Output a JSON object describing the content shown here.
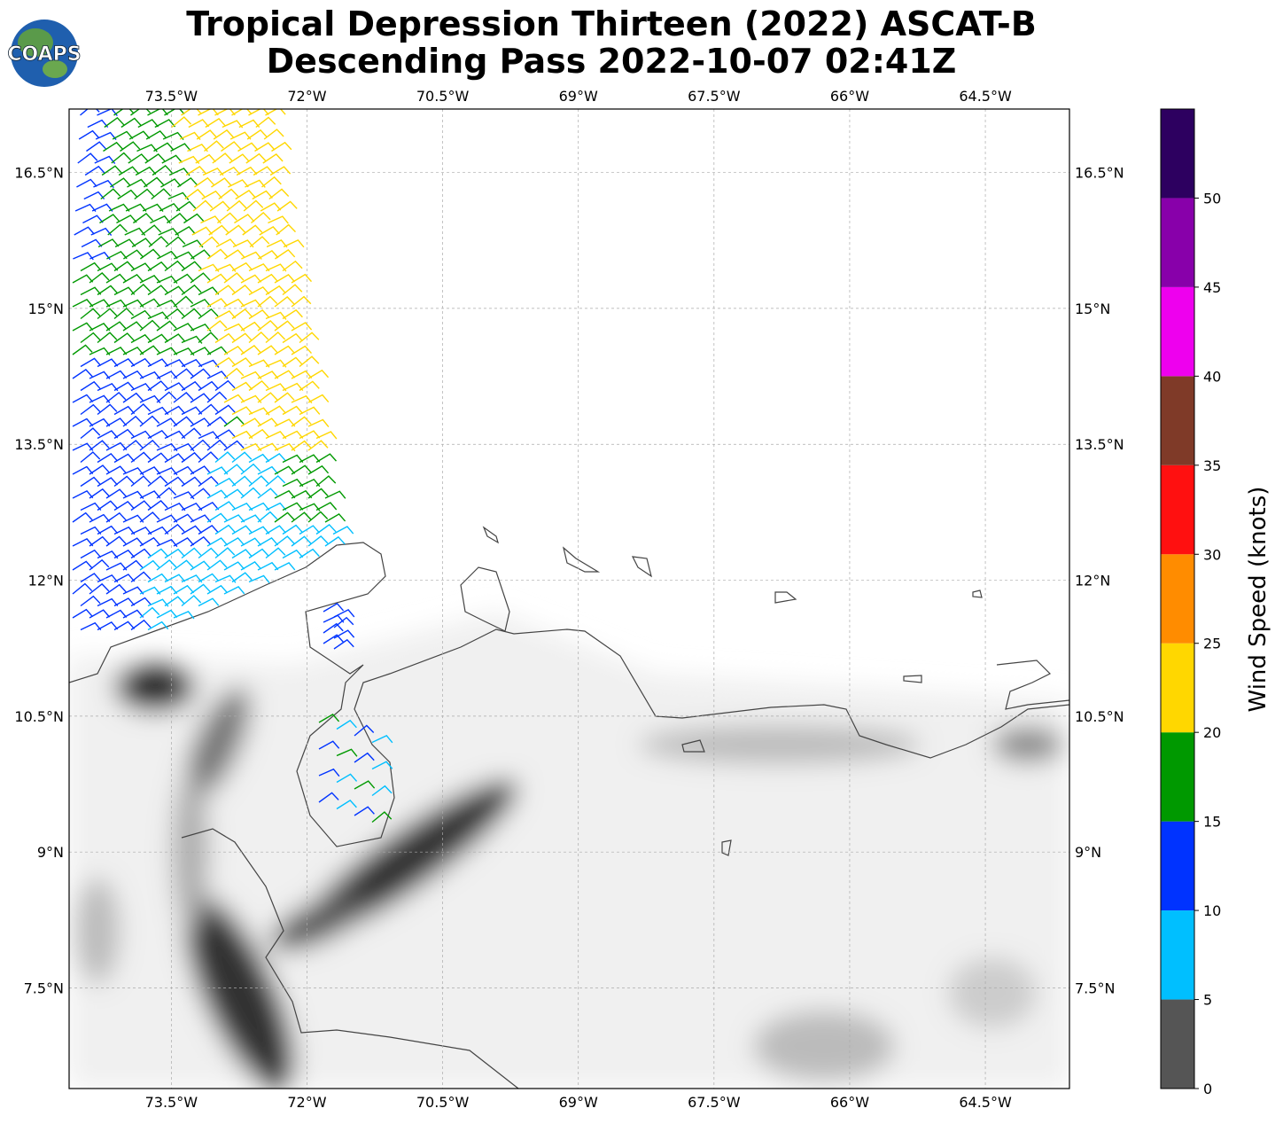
{
  "title": [
    "Tropical Depression Thirteen (2022) ASCAT-B",
    "Descending Pass 2022-10-07 02:41Z"
  ],
  "logo": "COAPS",
  "map": {
    "xlim": [
      -74.63,
      -63.57
    ],
    "ylim": [
      6.39,
      17.2
    ],
    "xticks": [
      {
        "value": -73.5,
        "label": "73.5°W"
      },
      {
        "value": -72,
        "label": "72°W"
      },
      {
        "value": -70.5,
        "label": "70.5°W"
      },
      {
        "value": -69,
        "label": "69°W"
      },
      {
        "value": -67.5,
        "label": "67.5°W"
      },
      {
        "value": -66,
        "label": "66°W"
      },
      {
        "value": -64.5,
        "label": "64.5°W"
      }
    ],
    "yticks": [
      {
        "value": 16.5,
        "label": "16.5°N"
      },
      {
        "value": 15,
        "label": "15°N"
      },
      {
        "value": 13.5,
        "label": "13.5°N"
      },
      {
        "value": 12,
        "label": "12°N"
      },
      {
        "value": 10.5,
        "label": "10.5°N"
      },
      {
        "value": 9,
        "label": "9°N"
      },
      {
        "value": 7.5,
        "label": "7.5°N"
      }
    ],
    "grid": true
  },
  "colorbar": {
    "label": "Wind Speed (knots)",
    "lim": [
      0,
      55
    ],
    "ticks": [
      0,
      5,
      10,
      15,
      20,
      25,
      30,
      35,
      40,
      45,
      50
    ],
    "colors": [
      "#555555",
      "#00bfff",
      "#0033ff",
      "#009900",
      "#ffd700",
      "#ff8c00",
      "#ff1010",
      "#7f3a28",
      "#ee00ee",
      "#8800aa",
      "#2d0060"
    ]
  }
}
